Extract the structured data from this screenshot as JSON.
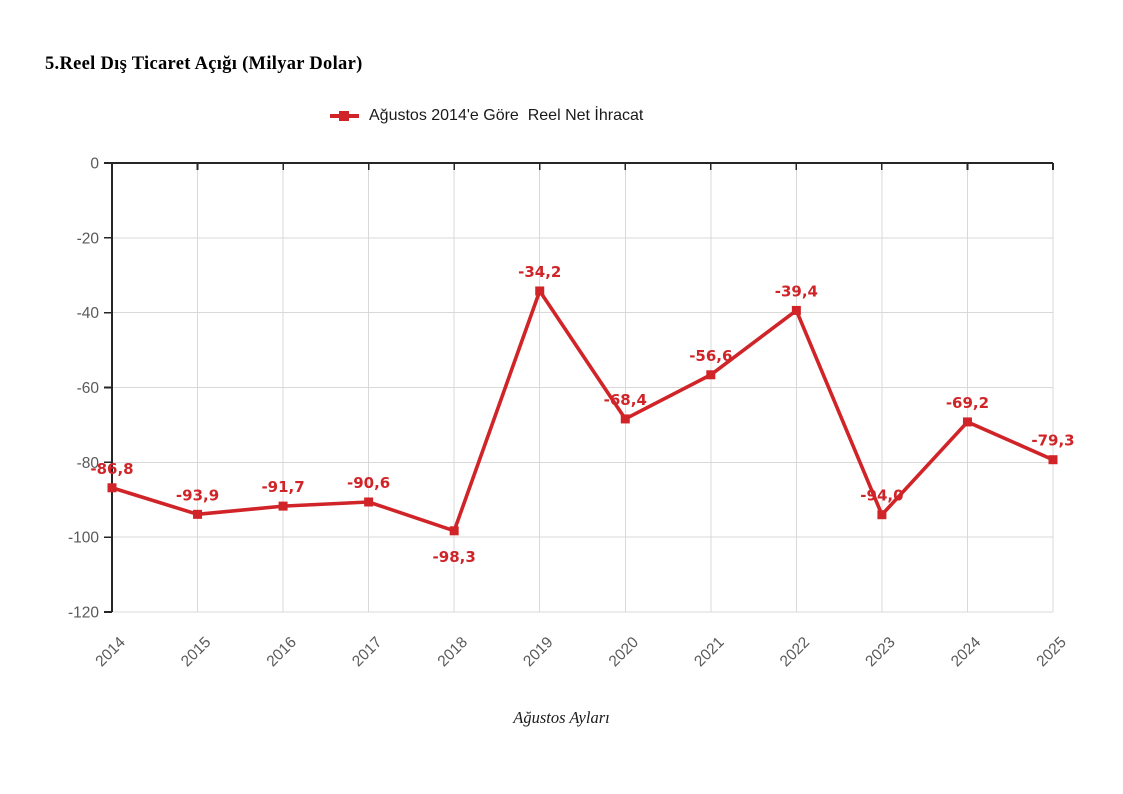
{
  "title": "5.Reel Dış Ticaret Açığı (Milyar Dolar)",
  "legend": {
    "label": "Ağustos 2014'e Göre  Reel Net İhracat"
  },
  "chart_data": {
    "type": "line",
    "title": "5.Reel Dış Ticaret Açığı (Milyar Dolar)",
    "categories": [
      "2014",
      "2015",
      "2016",
      "2017",
      "2018",
      "2019",
      "2020",
      "2021",
      "2022",
      "2023",
      "2024",
      "2025"
    ],
    "series": [
      {
        "name": "Ağustos 2014'e Göre  Reel Net İhracat",
        "values": [
          -86.8,
          -93.9,
          -91.7,
          -90.6,
          -98.3,
          -34.2,
          -68.4,
          -56.6,
          -39.4,
          -94.0,
          -69.2,
          -79.3
        ],
        "point_labels": [
          "-86,8",
          "-93,9",
          "-91,7",
          "-90,6",
          "-98,3",
          "-34,2",
          "-68,4",
          "-56,6",
          "-39,4",
          "-94,0",
          "-69,2",
          "-79,3"
        ],
        "marker": "square"
      }
    ],
    "xlabel": "Ağustos Ayları",
    "ylabel": "",
    "ylim": [
      -120,
      0
    ],
    "y_ticks": [
      0,
      -20,
      -40,
      -60,
      -80,
      -100,
      -120
    ],
    "y_tick_labels": [
      "0",
      "-20",
      "-40",
      "-60",
      "-80",
      "-100",
      "-120"
    ],
    "grid": true,
    "legend_position": "top",
    "x_tick_rotation": -45,
    "labels_below_point_indices": [
      4
    ]
  },
  "colors": {
    "accent": "#d02428",
    "axis": "#262626",
    "grid": "#d9d9d9",
    "tick_text": "#595959",
    "background": "#ffffff"
  }
}
